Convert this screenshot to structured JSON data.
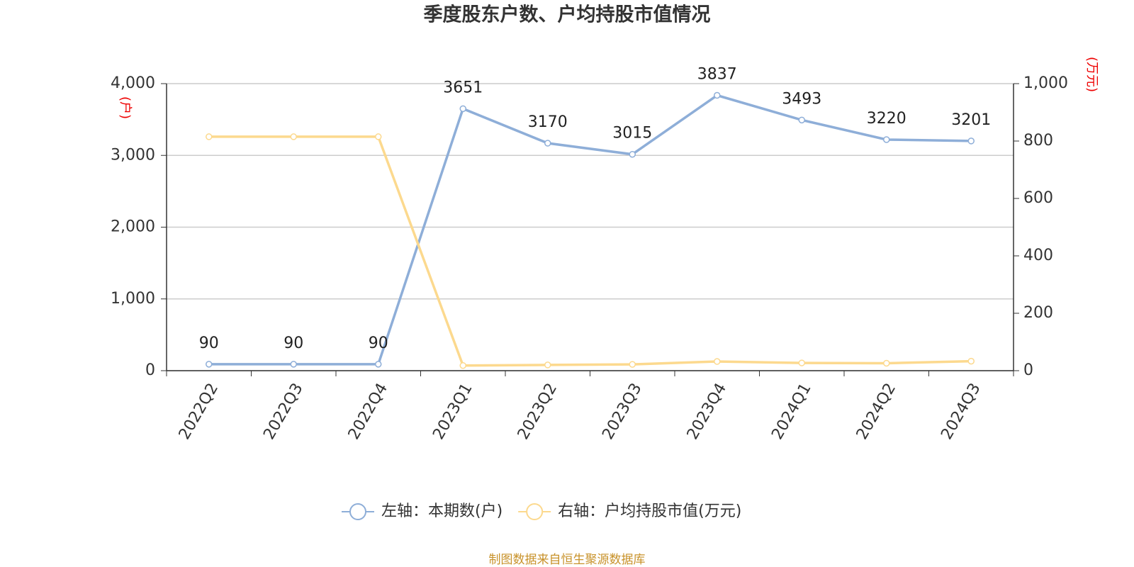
{
  "chart_data": {
    "type": "line",
    "title": "季度股东户数、户均持股市值情况",
    "y_label": "(户)",
    "y2_label": "(万元)",
    "source": "制图数据来自恒生聚源数据库",
    "categories": [
      "2022Q2",
      "2022Q3",
      "2022Q4",
      "2023Q1",
      "2023Q2",
      "2023Q3",
      "2023Q4",
      "2024Q1",
      "2024Q2",
      "2024Q3"
    ],
    "series": [
      {
        "name": "左轴：本期数(户)",
        "color": "#8eaed8",
        "values": [
          90,
          90,
          90,
          3651,
          3170,
          3015,
          3837,
          3493,
          3220,
          3201
        ],
        "show_labels": true
      },
      {
        "name": "右轴：户均持股市值(万元)",
        "color": "#fcd98e",
        "axis": "y2",
        "values": [
          815,
          815,
          815,
          18,
          20,
          22,
          32,
          27,
          26,
          33
        ]
      }
    ],
    "ylim": [
      0,
      4000
    ],
    "yticks": [
      0,
      {
        "value": 1000,
        "label": "1,000"
      },
      {
        "value": 2000,
        "label": "2,000"
      },
      {
        "value": 3000,
        "label": "3,000"
      },
      {
        "value": 4000,
        "label": "4,000"
      }
    ],
    "y2lim": [
      0,
      1000
    ],
    "y2ticks": [
      0,
      200,
      400,
      600,
      800,
      {
        "value": 1000,
        "label": "1,000"
      }
    ],
    "grid": true
  }
}
